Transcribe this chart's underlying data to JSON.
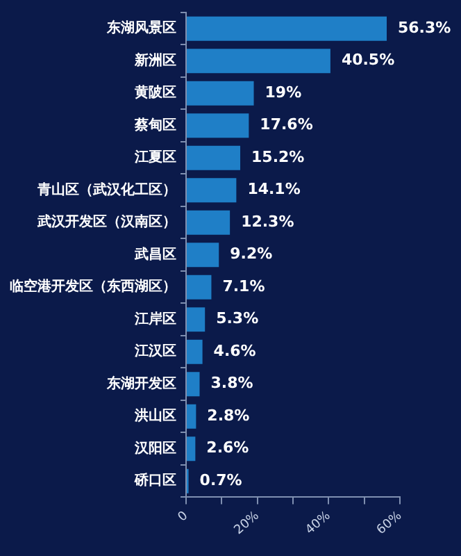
{
  "chart_data": {
    "type": "bar",
    "orientation": "horizontal",
    "categories": [
      "东湖风景区",
      "新洲区",
      "黄陂区",
      "蔡甸区",
      "江夏区",
      "青山区（武汉化工区）",
      "武汉开发区（汉南区）",
      "武昌区",
      "临空港开发区（东西湖区）",
      "江岸区",
      "江汉区",
      "东湖开发区",
      "洪山区",
      "汉阳区",
      "硚口区"
    ],
    "values": [
      56.3,
      40.5,
      19,
      17.6,
      15.2,
      14.1,
      12.3,
      9.2,
      7.1,
      5.3,
      4.6,
      3.8,
      2.8,
      2.6,
      0.7
    ],
    "value_labels": [
      "56.3%",
      "40.5%",
      "19%",
      "17.6%",
      "15.2%",
      "14.1%",
      "12.3%",
      "9.2%",
      "7.1%",
      "5.3%",
      "4.6%",
      "3.8%",
      "2.8%",
      "2.6%",
      "0.7%"
    ],
    "color": "#1f7fc7",
    "xlim": [
      0,
      60
    ],
    "xticks": [
      {
        "value": 0,
        "label": "0"
      },
      {
        "value": 10,
        "label": null
      },
      {
        "value": 20,
        "label": "20%"
      },
      {
        "value": 30,
        "label": null
      },
      {
        "value": 40,
        "label": "40%"
      },
      {
        "value": 50,
        "label": null
      },
      {
        "value": 60,
        "label": "60%"
      }
    ],
    "grid": false,
    "legend": false
  }
}
